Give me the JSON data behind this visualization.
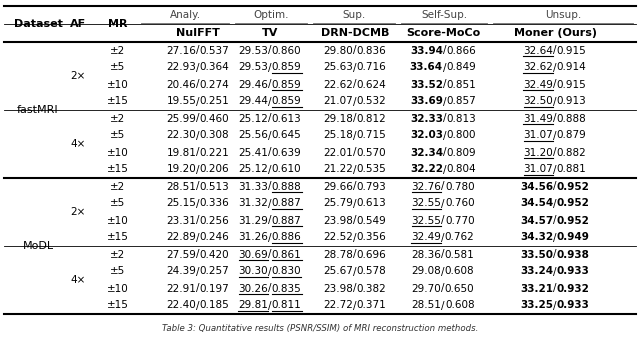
{
  "rows": [
    [
      "fastMRI",
      "2×",
      "±2",
      "27.16/0.537",
      "29.53/0.860",
      "29.80/0.836",
      "33.94/0.866",
      "32.64/0.915"
    ],
    [
      "",
      "",
      "±5",
      "22.93/0.364",
      "29.53/0.859",
      "25.63/0.716",
      "33.64/0.849",
      "32.62/0.914"
    ],
    [
      "",
      "",
      "±10",
      "20.46/0.274",
      "29.46/0.859",
      "22.62/0.624",
      "33.52/0.851",
      "32.49/0.915"
    ],
    [
      "",
      "",
      "±15",
      "19.55/0.251",
      "29.44/0.859",
      "21.07/0.532",
      "33.69/0.857",
      "32.50/0.913"
    ],
    [
      "",
      "4×",
      "±2",
      "25.99/0.460",
      "25.12/0.613",
      "29.18/0.812",
      "32.33/0.813",
      "31.49/0.888"
    ],
    [
      "",
      "",
      "±5",
      "22.30/0.308",
      "25.56/0.645",
      "25.18/0.715",
      "32.03/0.800",
      "31.07/0.879"
    ],
    [
      "",
      "",
      "±10",
      "19.81/0.221",
      "25.41/0.639",
      "22.01/0.570",
      "32.34/0.809",
      "31.20/0.882"
    ],
    [
      "",
      "",
      "±15",
      "19.20/0.206",
      "25.12/0.610",
      "21.22/0.535",
      "32.22/0.804",
      "31.07/0.881"
    ],
    [
      "MoDL",
      "2×",
      "±2",
      "28.51/0.513",
      "31.33/0.888",
      "29.66/0.793",
      "32.76/0.780",
      "34.56/0.952"
    ],
    [
      "",
      "",
      "±5",
      "25.15/0.336",
      "31.32/0.887",
      "25.79/0.613",
      "32.55/0.760",
      "34.54/0.952"
    ],
    [
      "",
      "",
      "±10",
      "23.31/0.256",
      "31.29/0.887",
      "23.98/0.549",
      "32.55/0.770",
      "34.57/0.952"
    ],
    [
      "",
      "",
      "±15",
      "22.89/0.246",
      "31.26/0.886",
      "22.52/0.356",
      "32.49/0.762",
      "34.32/0.949"
    ],
    [
      "",
      "4×",
      "±2",
      "27.59/0.420",
      "30.69/0.861",
      "28.78/0.696",
      "28.36/0.581",
      "33.50/0.938"
    ],
    [
      "",
      "",
      "±5",
      "24.39/0.257",
      "30.30/0.830",
      "25.67/0.578",
      "29.08/0.608",
      "33.24/0.933"
    ],
    [
      "",
      "",
      "±10",
      "22.91/0.197",
      "30.26/0.835",
      "23.98/0.382",
      "29.70/0.650",
      "33.21/0.932"
    ],
    [
      "",
      "",
      "±15",
      "22.40/0.185",
      "29.81/0.811",
      "22.72/0.371",
      "28.51/0.608",
      "33.25/0.933"
    ]
  ],
  "col_groups": [
    "Analy.",
    "Optim.",
    "Sup.",
    "Self-Sup.",
    "Unsup."
  ],
  "col_methods": [
    "NuIFFT",
    "TV",
    "DRN-DCMB",
    "Score-MoCo",
    "Moner (Ours)"
  ],
  "row_labels": [
    "Dataset",
    "AF",
    "MR"
  ],
  "caption": "Table 3: Quantitative results (PSNR/SSIM) of MRI reconstruction methods.",
  "bg_color": "#ffffff"
}
